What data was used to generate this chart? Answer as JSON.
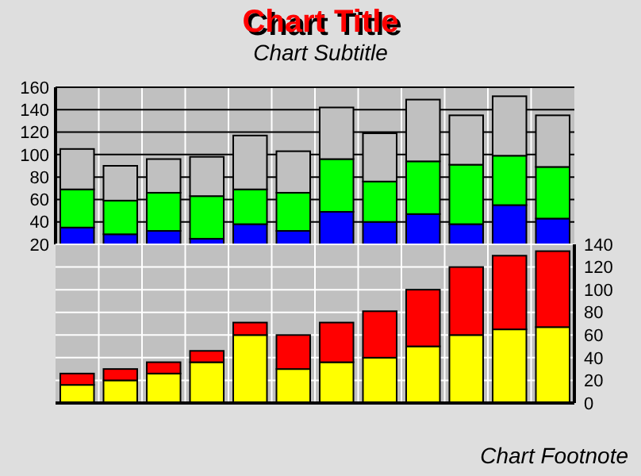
{
  "chart_data": [
    {
      "type": "bar",
      "title": "Chart Title",
      "subtitle": "Chart Subtitle",
      "stacked": true,
      "categories": [
        null,
        null,
        null,
        null,
        null,
        null,
        null,
        null,
        null,
        null,
        null,
        null
      ],
      "ylim": [
        20,
        160
      ],
      "yticks": [
        20,
        40,
        60,
        80,
        100,
        120,
        140,
        160
      ],
      "grid": true,
      "tick_labels": "y",
      "series": [
        {
          "color": "#0000ff",
          "values": [
            35,
            29,
            32,
            25,
            38,
            32,
            49,
            40,
            47,
            38,
            55,
            43
          ]
        },
        {
          "color": "#00ff00",
          "values": [
            34,
            30,
            34,
            38,
            31,
            34,
            47,
            36,
            47,
            53,
            44,
            46
          ]
        },
        {
          "color": "#c0c0c0",
          "values": [
            36,
            31,
            30,
            35,
            48,
            37,
            46,
            43,
            55,
            44,
            53,
            46
          ]
        }
      ]
    },
    {
      "type": "bar",
      "stacked": true,
      "annotations": [
        "Chart Footnote"
      ],
      "categories": [
        null,
        null,
        null,
        null,
        null,
        null,
        null,
        null,
        null,
        null,
        null,
        null
      ],
      "ylim": [
        0,
        140
      ],
      "yticks": [
        0,
        20,
        40,
        60,
        80,
        100,
        120,
        140
      ],
      "grid": true,
      "tick_labels": "y",
      "series": [
        {
          "color": "#ffff00",
          "values": [
            16,
            20,
            26,
            36,
            60,
            30,
            36,
            40,
            50,
            60,
            65,
            67
          ]
        },
        {
          "color": "#ff0000",
          "values": [
            10,
            10,
            10,
            10,
            11,
            30,
            35,
            41,
            50,
            60,
            65,
            67
          ]
        }
      ]
    }
  ]
}
